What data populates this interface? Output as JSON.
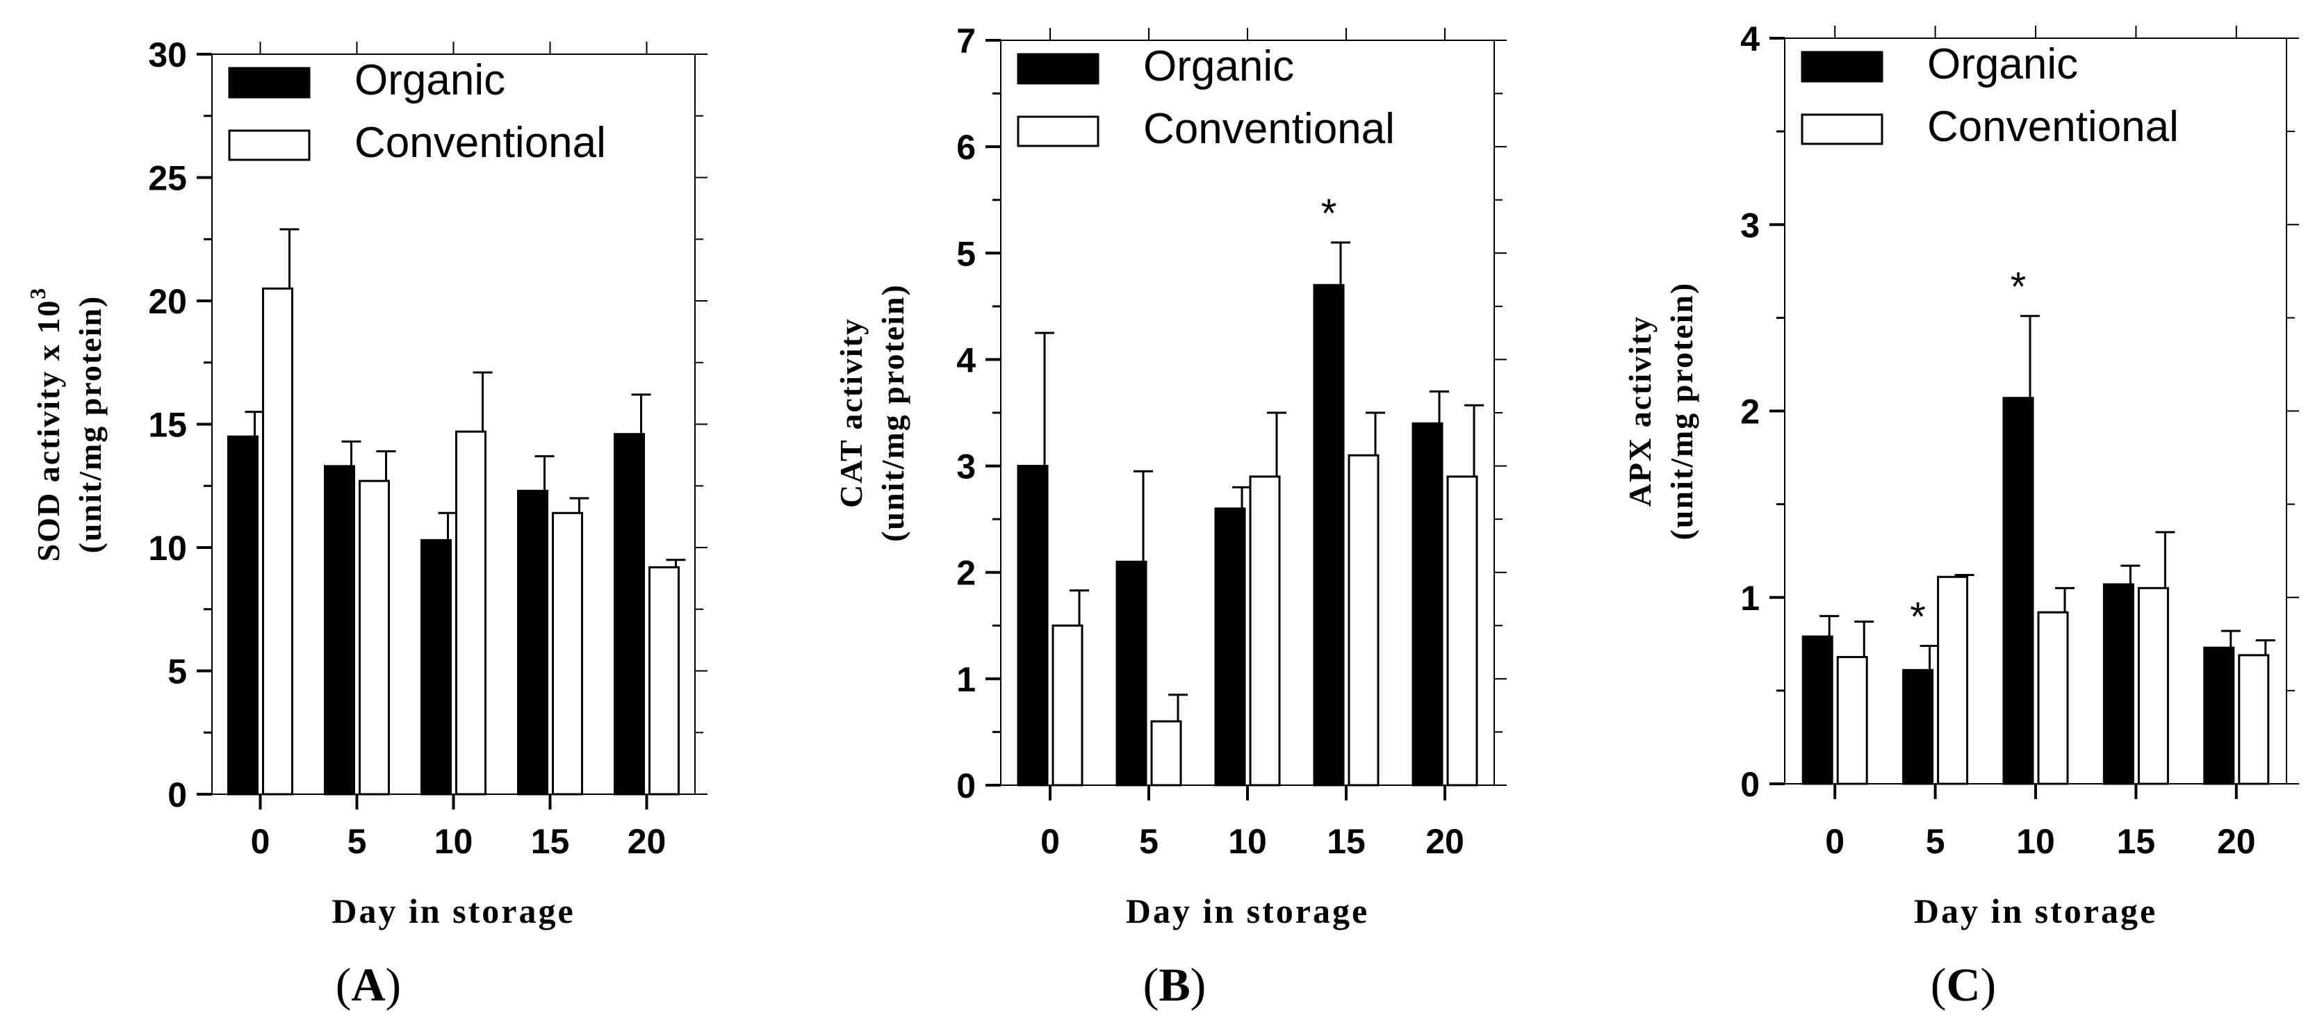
{
  "figure": {
    "colors": {
      "organic": "#000000",
      "conventional": "#ffffff",
      "axis": "#000000"
    }
  },
  "chart_data": [
    {
      "panel": "A",
      "type": "bar",
      "caption": {
        "open": "(",
        "letter": "A",
        "close": ")"
      },
      "xlabel": "Day in storage",
      "ylabel_line1": "SOD activity x 10",
      "ylabel_sup": "3",
      "ylabel_line2": "(unit/mg protein)",
      "ylim": [
        0,
        30
      ],
      "yticks": [
        "0",
        "5",
        "10",
        "15",
        "20",
        "25",
        "30"
      ],
      "categories": [
        "0",
        "5",
        "10",
        "15",
        "20"
      ],
      "legend": [
        "Organic",
        "Conventional"
      ],
      "series": [
        {
          "name": "Organic",
          "values": [
            14.5,
            13.3,
            10.3,
            12.3,
            14.6
          ],
          "errors": [
            1.0,
            1.0,
            1.1,
            1.4,
            1.6
          ]
        },
        {
          "name": "Conventional",
          "values": [
            20.5,
            12.7,
            14.7,
            11.4,
            9.2
          ],
          "errors": [
            2.4,
            1.2,
            2.4,
            0.6,
            0.3
          ]
        }
      ],
      "annotations": []
    },
    {
      "panel": "B",
      "type": "bar",
      "caption": {
        "open": "(",
        "letter": "B",
        "close": ")"
      },
      "xlabel": "Day in storage",
      "ylabel_line1": "CAT activity",
      "ylabel_sup": "",
      "ylabel_line2": "(unit/mg protein)",
      "ylim": [
        0,
        7
      ],
      "yticks": [
        "0",
        "1",
        "2",
        "3",
        "4",
        "5",
        "6",
        "7"
      ],
      "categories": [
        "0",
        "5",
        "10",
        "15",
        "20"
      ],
      "legend": [
        "Organic",
        "Conventional"
      ],
      "series": [
        {
          "name": "Organic",
          "values": [
            3.0,
            2.1,
            2.6,
            4.7,
            3.4
          ],
          "errors": [
            1.25,
            0.85,
            0.2,
            0.4,
            0.3
          ]
        },
        {
          "name": "Conventional",
          "values": [
            1.5,
            0.6,
            2.9,
            3.1,
            2.9
          ],
          "errors": [
            0.33,
            0.25,
            0.6,
            0.4,
            0.67
          ]
        }
      ],
      "annotations": [
        {
          "category": "15",
          "series": 0,
          "text": "*"
        }
      ]
    },
    {
      "panel": "C",
      "type": "bar",
      "caption": {
        "open": "(",
        "letter": "C",
        "close": ")"
      },
      "xlabel": "Day in storage",
      "ylabel_line1": "APX activity",
      "ylabel_sup": "",
      "ylabel_line2": "(unit/mg protein)",
      "ylim": [
        0,
        4
      ],
      "yticks": [
        "0",
        "1",
        "2",
        "3",
        "4"
      ],
      "categories": [
        "0",
        "5",
        "10",
        "15",
        "20"
      ],
      "legend": [
        "Organic",
        "Conventional"
      ],
      "series": [
        {
          "name": "Organic",
          "values": [
            0.79,
            0.61,
            2.07,
            1.07,
            0.73
          ],
          "errors": [
            0.11,
            0.13,
            0.44,
            0.1,
            0.09
          ]
        },
        {
          "name": "Conventional",
          "values": [
            0.68,
            1.11,
            0.92,
            1.05,
            0.69
          ],
          "errors": [
            0.19,
            0.01,
            0.13,
            0.3,
            0.08
          ]
        }
      ],
      "annotations": [
        {
          "category": "5",
          "series": 0,
          "text": "*"
        },
        {
          "category": "10",
          "series": 0,
          "text": "*"
        }
      ]
    }
  ]
}
